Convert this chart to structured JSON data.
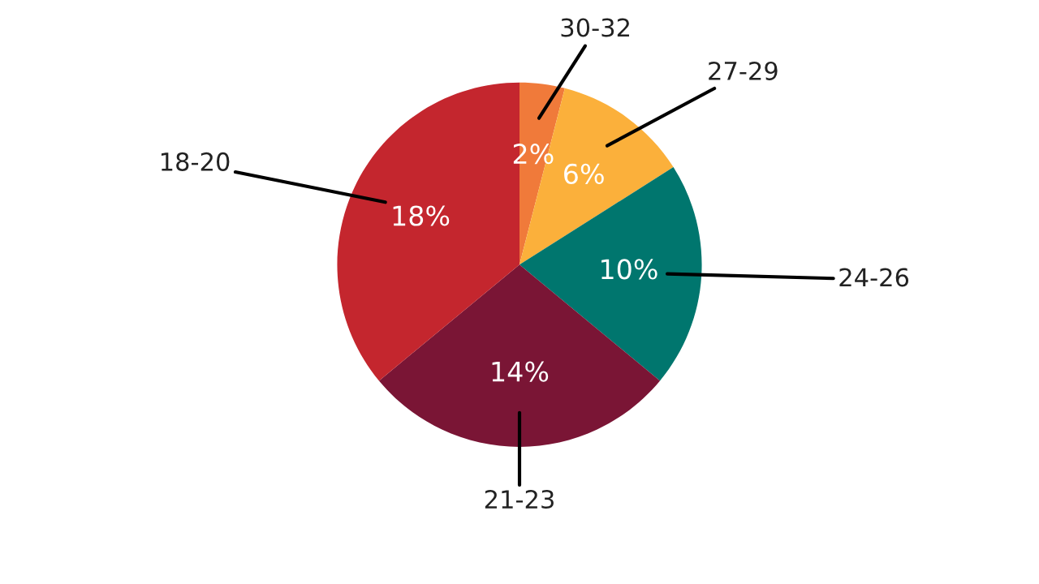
{
  "chart_data": {
    "type": "pie",
    "categories": [
      "30-32",
      "27-29",
      "24-26",
      "21-23",
      "18-20"
    ],
    "values": [
      2,
      6,
      10,
      14,
      18
    ],
    "value_labels": [
      "2%",
      "6%",
      "10%",
      "14%",
      "18%"
    ],
    "colors": [
      "#f07a3a",
      "#fbb03b",
      "#00766e",
      "#7a1535",
      "#c4262e"
    ],
    "legend": false
  }
}
